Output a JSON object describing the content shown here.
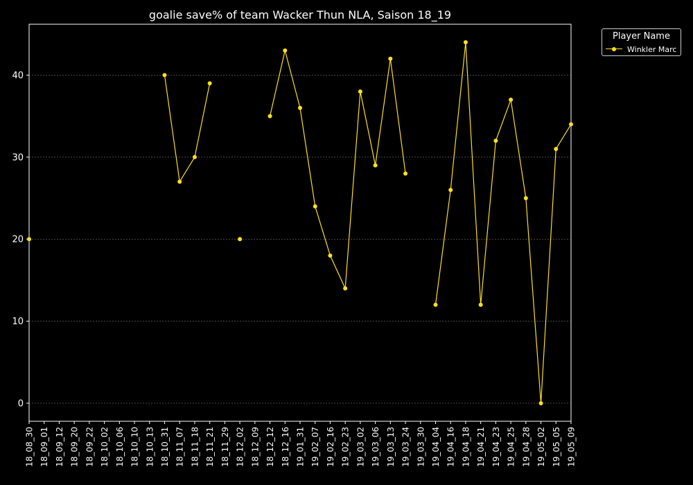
{
  "chart_data": {
    "type": "line",
    "title": "goalie save% of team Wacker Thun NLA, Saison 18_19",
    "xlabel": "",
    "ylabel": "",
    "categories": [
      "18_08_30",
      "18_09_01",
      "18_09_12",
      "18_09_20",
      "18_09_22",
      "18_10_02",
      "18_10_06",
      "18_10_10",
      "18_10_13",
      "18_10_31",
      "18_11_07",
      "18_11_18",
      "18_11_21",
      "18_11_29",
      "18_12_02",
      "18_12_09",
      "18_12_12",
      "18_12_16",
      "19_01_31",
      "19_02_07",
      "19_02_16",
      "19_02_23",
      "19_03_02",
      "19_03_06",
      "19_03_13",
      "19_03_24",
      "19_03_30",
      "19_04_04",
      "19_04_16",
      "19_04_18",
      "19_04_21",
      "19_04_23",
      "19_04_25",
      "19_04_28",
      "19_05_02",
      "19_05_05",
      "19_05_09"
    ],
    "series": [
      {
        "name": "Winkler Marc",
        "color": "#ffe01a",
        "values": [
          20,
          null,
          null,
          null,
          null,
          null,
          null,
          null,
          null,
          40,
          27,
          30,
          39,
          null,
          20,
          null,
          35,
          43,
          36,
          24,
          18,
          14,
          38,
          29,
          42,
          28,
          null,
          12,
          26,
          44,
          12,
          32,
          37,
          25,
          0,
          31,
          34
        ]
      }
    ],
    "ylim": [
      -2.2,
      46.2
    ],
    "yticks": [
      0,
      10,
      20,
      30,
      40
    ],
    "grid": true,
    "legend": {
      "title": "Player Name",
      "placement": "upper right, outside plot"
    }
  }
}
